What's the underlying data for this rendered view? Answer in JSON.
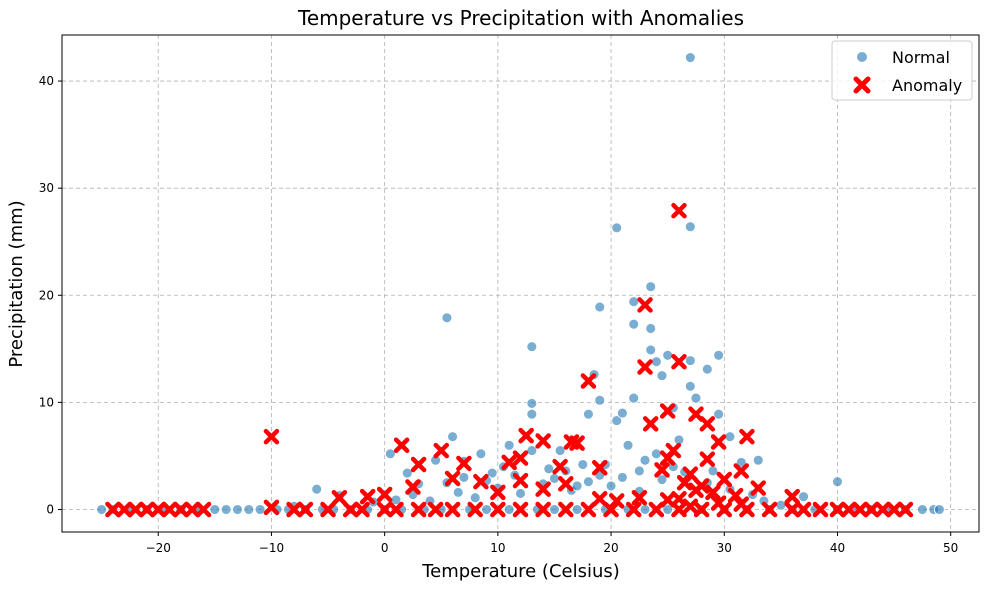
{
  "chart_data": {
    "type": "scatter",
    "title": "Temperature vs Precipitation with Anomalies",
    "xlabel": "Temperature (Celsius)",
    "ylabel": "Precipitation (mm)",
    "xlim": [
      -28.5,
      52.5
    ],
    "ylim": [
      -2.1,
      44.3
    ],
    "xticks": [
      -20,
      -10,
      0,
      10,
      20,
      30,
      40,
      50
    ],
    "yticks": [
      0,
      10,
      20,
      30,
      40
    ],
    "grid": true,
    "legend_position": "top-right",
    "series": [
      {
        "name": "Normal",
        "marker": "circle",
        "color": "#1f77b4",
        "points": [
          [
            27.0,
            42.2
          ],
          [
            27.0,
            26.4
          ],
          [
            20.5,
            26.3
          ],
          [
            5.5,
            17.9
          ],
          [
            19.0,
            18.9
          ],
          [
            23.5,
            20.8
          ],
          [
            22.0,
            19.4
          ],
          [
            22.0,
            17.3
          ],
          [
            23.5,
            16.9
          ],
          [
            13.0,
            15.2
          ],
          [
            29.5,
            14.4
          ],
          [
            25.0,
            14.4
          ],
          [
            23.5,
            14.9
          ],
          [
            24.0,
            13.8
          ],
          [
            27.0,
            13.9
          ],
          [
            28.5,
            13.1
          ],
          [
            24.5,
            12.5
          ],
          [
            18.5,
            12.6
          ],
          [
            27.0,
            11.5
          ],
          [
            19.0,
            10.2
          ],
          [
            22.0,
            10.4
          ],
          [
            13.0,
            9.9
          ],
          [
            13.0,
            8.9
          ],
          [
            18.0,
            8.9
          ],
          [
            20.5,
            8.3
          ],
          [
            21.0,
            9.0
          ],
          [
            25.5,
            9.5
          ],
          [
            27.5,
            10.4
          ],
          [
            29.5,
            8.9
          ],
          [
            30.5,
            6.8
          ],
          [
            33.0,
            4.6
          ],
          [
            40.0,
            2.6
          ],
          [
            6.0,
            6.8
          ],
          [
            21.5,
            6.0
          ],
          [
            11.0,
            6.0
          ],
          [
            13.0,
            5.5
          ],
          [
            0.5,
            5.2
          ],
          [
            4.5,
            4.6
          ],
          [
            7.0,
            4.5
          ],
          [
            8.5,
            5.2
          ],
          [
            15.5,
            5.5
          ],
          [
            17.5,
            4.2
          ],
          [
            -6.0,
            1.9
          ],
          [
            -4.0,
            1.3
          ],
          [
            2.0,
            3.4
          ],
          [
            3.0,
            2.4
          ],
          [
            9.5,
            3.4
          ],
          [
            10.5,
            4.0
          ],
          [
            14.5,
            3.8
          ],
          [
            16.0,
            3.6
          ],
          [
            19.0,
            3.2
          ],
          [
            22.5,
            3.6
          ],
          [
            24.0,
            5.2
          ],
          [
            26.0,
            6.5
          ],
          [
            31.5,
            4.4
          ],
          [
            37.0,
            1.2
          ],
          [
            35.0,
            0.4
          ],
          [
            -8.0,
            0.3
          ],
          [
            -12.0,
            0.0
          ],
          [
            -25.0,
            0.0
          ],
          [
            -24.0,
            0.0
          ],
          [
            -22.5,
            0.0
          ],
          [
            -21.0,
            0.0
          ],
          [
            -19.5,
            0.0
          ],
          [
            -18.0,
            0.0
          ],
          [
            -16.5,
            0.0
          ],
          [
            -15.0,
            0.0
          ],
          [
            -14.0,
            0.0
          ],
          [
            -13.0,
            0.0
          ],
          [
            -11.0,
            0.0
          ],
          [
            -9.5,
            0.0
          ],
          [
            -8.5,
            0.0
          ],
          [
            -7.0,
            0.0
          ],
          [
            -5.5,
            0.0
          ],
          [
            -4.5,
            0.0
          ],
          [
            -3.0,
            0.0
          ],
          [
            -1.5,
            0.0
          ],
          [
            0.0,
            0.0
          ],
          [
            1.5,
            0.0
          ],
          [
            3.5,
            0.0
          ],
          [
            5.0,
            0.0
          ],
          [
            7.5,
            0.0
          ],
          [
            9.0,
            0.0
          ],
          [
            11.0,
            0.0
          ],
          [
            13.5,
            0.0
          ],
          [
            15.0,
            0.0
          ],
          [
            17.0,
            0.0
          ],
          [
            19.5,
            0.0
          ],
          [
            21.5,
            0.0
          ],
          [
            23.0,
            0.0
          ],
          [
            25.0,
            0.0
          ],
          [
            28.0,
            0.0
          ],
          [
            30.0,
            0.0
          ],
          [
            32.0,
            0.0
          ],
          [
            34.0,
            0.0
          ],
          [
            36.0,
            0.0
          ],
          [
            38.0,
            0.0
          ],
          [
            40.0,
            0.0
          ],
          [
            41.5,
            0.0
          ],
          [
            43.0,
            0.0
          ],
          [
            44.5,
            0.0
          ],
          [
            46.0,
            0.0
          ],
          [
            47.5,
            0.0
          ],
          [
            48.5,
            0.0
          ],
          [
            49.0,
            0.0
          ],
          [
            2.5,
            1.4
          ],
          [
            4.0,
            0.8
          ],
          [
            6.5,
            1.6
          ],
          [
            8.0,
            1.1
          ],
          [
            10.0,
            2.0
          ],
          [
            12.0,
            1.5
          ],
          [
            14.0,
            2.4
          ],
          [
            16.5,
            1.8
          ],
          [
            18.0,
            2.6
          ],
          [
            20.0,
            2.2
          ],
          [
            21.0,
            3.0
          ],
          [
            22.5,
            1.7
          ],
          [
            24.5,
            2.8
          ],
          [
            26.5,
            3.5
          ],
          [
            28.5,
            2.5
          ],
          [
            30.5,
            1.9
          ],
          [
            32.5,
            1.4
          ],
          [
            33.5,
            0.8
          ],
          [
            1.0,
            0.9
          ],
          [
            -1.0,
            0.7
          ],
          [
            5.5,
            2.5
          ],
          [
            7.0,
            3.0
          ],
          [
            9.0,
            2.7
          ],
          [
            11.5,
            3.2
          ],
          [
            15.0,
            2.9
          ],
          [
            17.0,
            2.2
          ],
          [
            19.5,
            4.2
          ],
          [
            23.0,
            4.6
          ],
          [
            25.5,
            4.0
          ],
          [
            29.0,
            3.6
          ]
        ]
      },
      {
        "name": "Anomaly",
        "marker": "x",
        "color": "#ff0000",
        "points": [
          [
            26.0,
            27.9
          ],
          [
            23.0,
            19.1
          ],
          [
            18.0,
            12.0
          ],
          [
            23.0,
            13.3
          ],
          [
            26.0,
            13.8
          ],
          [
            -10.0,
            6.8
          ],
          [
            1.5,
            6.0
          ],
          [
            25.0,
            9.2
          ],
          [
            27.5,
            8.9
          ],
          [
            28.5,
            8.0
          ],
          [
            23.5,
            8.0
          ],
          [
            32.0,
            6.8
          ],
          [
            29.5,
            6.3
          ],
          [
            12.5,
            6.9
          ],
          [
            14.0,
            6.4
          ],
          [
            16.5,
            6.3
          ],
          [
            17.0,
            6.2
          ],
          [
            5.0,
            5.5
          ],
          [
            3.0,
            4.2
          ],
          [
            7.0,
            4.3
          ],
          [
            11.0,
            4.4
          ],
          [
            12.0,
            4.8
          ],
          [
            15.5,
            4.0
          ],
          [
            19.0,
            3.9
          ],
          [
            24.5,
            3.7
          ],
          [
            28.5,
            4.7
          ],
          [
            31.5,
            3.6
          ],
          [
            33.0,
            2.0
          ],
          [
            36.0,
            1.2
          ],
          [
            -4.0,
            1.1
          ],
          [
            -1.5,
            1.2
          ],
          [
            0.0,
            1.4
          ],
          [
            2.5,
            2.1
          ],
          [
            6.0,
            2.9
          ],
          [
            8.5,
            2.6
          ],
          [
            10.0,
            1.6
          ],
          [
            12.0,
            2.7
          ],
          [
            14.0,
            1.9
          ],
          [
            16.0,
            2.4
          ],
          [
            19.0,
            1.0
          ],
          [
            20.5,
            0.8
          ],
          [
            22.5,
            1.1
          ],
          [
            25.0,
            4.8
          ],
          [
            25.5,
            5.5
          ],
          [
            26.5,
            2.5
          ],
          [
            27.0,
            3.3
          ],
          [
            28.0,
            2.2
          ],
          [
            29.0,
            1.6
          ],
          [
            30.0,
            2.8
          ],
          [
            31.0,
            1.3
          ],
          [
            -24.0,
            0.0
          ],
          [
            -23.0,
            0.0
          ],
          [
            -22.0,
            0.0
          ],
          [
            -21.0,
            0.0
          ],
          [
            -20.0,
            0.0
          ],
          [
            -19.0,
            0.0
          ],
          [
            -18.0,
            0.0
          ],
          [
            -17.0,
            0.0
          ],
          [
            -16.0,
            0.0
          ],
          [
            -10.0,
            0.2
          ],
          [
            -8.0,
            0.0
          ],
          [
            -7.0,
            0.0
          ],
          [
            -5.0,
            0.0
          ],
          [
            -3.0,
            0.0
          ],
          [
            -2.0,
            0.0
          ],
          [
            0.0,
            0.0
          ],
          [
            1.0,
            0.0
          ],
          [
            3.0,
            0.0
          ],
          [
            4.5,
            0.0
          ],
          [
            6.0,
            0.0
          ],
          [
            8.0,
            0.0
          ],
          [
            10.0,
            0.0
          ],
          [
            12.0,
            0.0
          ],
          [
            14.0,
            0.0
          ],
          [
            16.0,
            0.0
          ],
          [
            18.0,
            0.0
          ],
          [
            20.0,
            0.0
          ],
          [
            22.0,
            0.0
          ],
          [
            24.0,
            0.0
          ],
          [
            26.0,
            0.0
          ],
          [
            28.0,
            0.0
          ],
          [
            30.0,
            0.0
          ],
          [
            32.0,
            0.0
          ],
          [
            34.0,
            0.0
          ],
          [
            36.0,
            0.0
          ],
          [
            37.0,
            0.0
          ],
          [
            38.5,
            0.0
          ],
          [
            40.0,
            0.0
          ],
          [
            41.0,
            0.0
          ],
          [
            42.0,
            0.0
          ],
          [
            43.0,
            0.0
          ],
          [
            44.0,
            0.0
          ],
          [
            45.0,
            0.0
          ],
          [
            46.0,
            0.0
          ],
          [
            26.0,
            1.0
          ],
          [
            27.5,
            1.8
          ],
          [
            29.5,
            0.6
          ],
          [
            25.0,
            0.9
          ],
          [
            27.0,
            0.3
          ],
          [
            31.5,
            0.5
          ]
        ]
      }
    ]
  }
}
